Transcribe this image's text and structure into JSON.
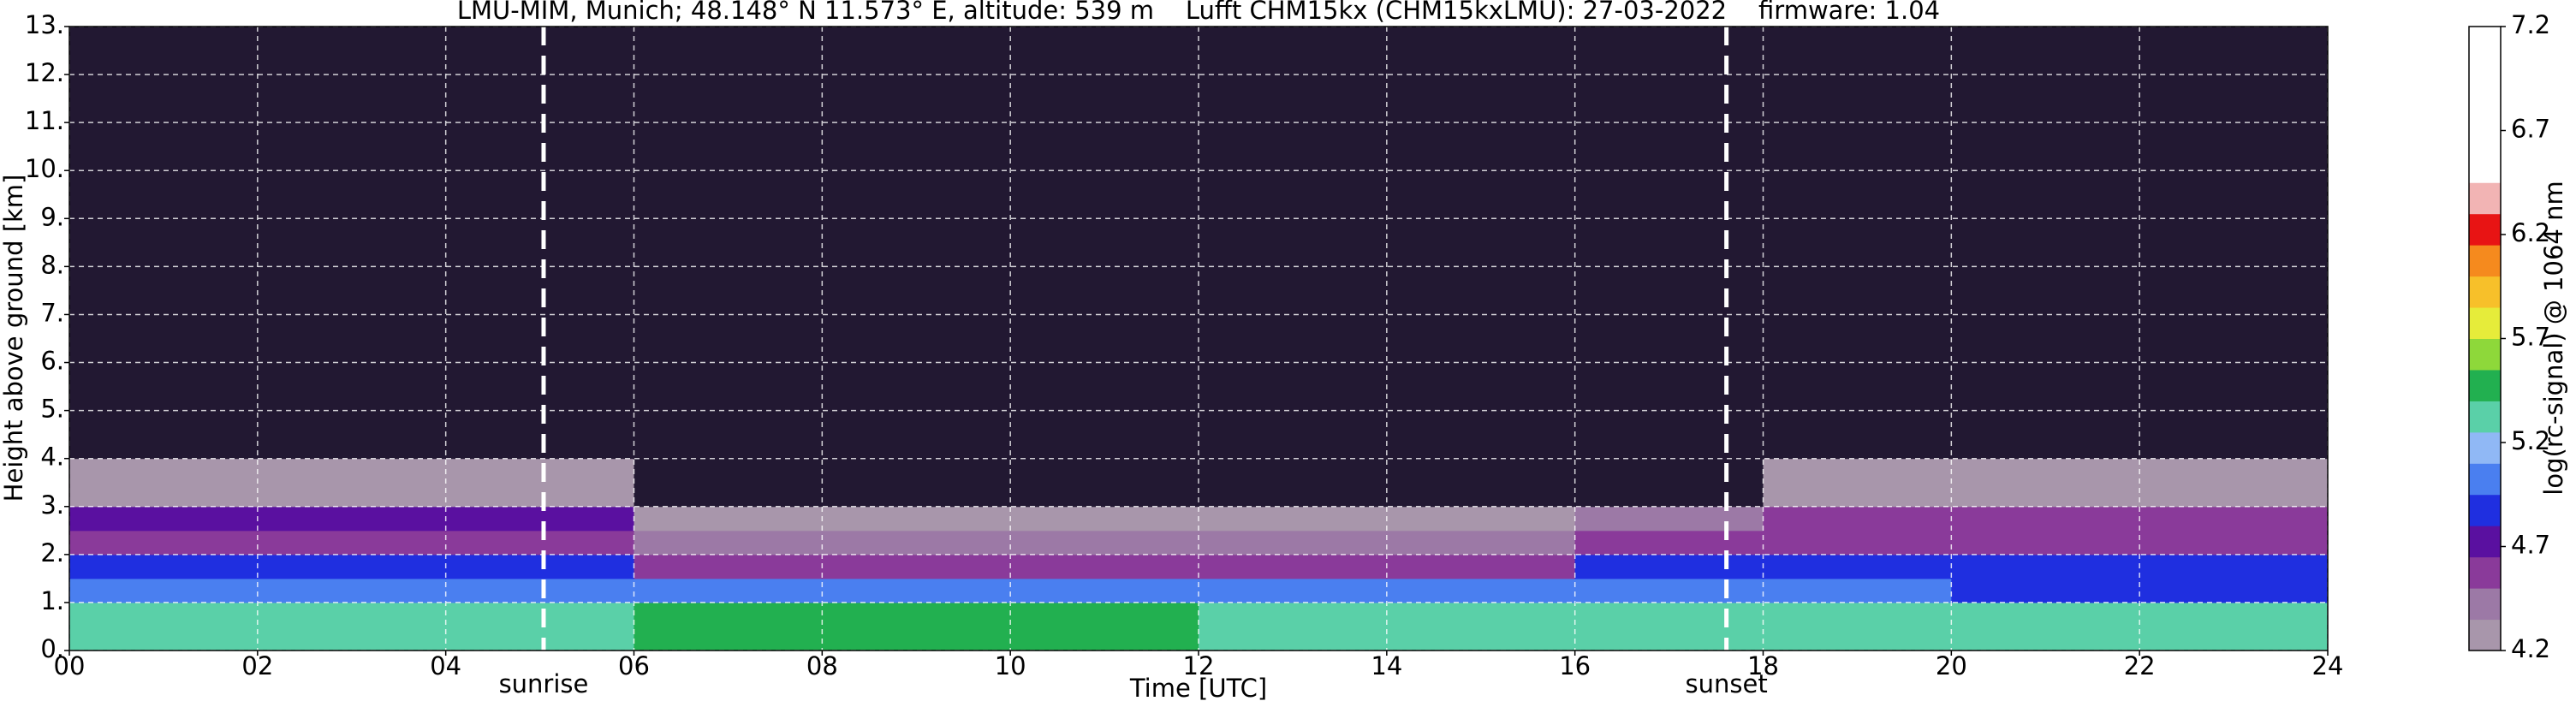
{
  "chart_data": {
    "type": "heatmap",
    "title": "LMU-MIM, Munich; 48.148° N 11.573° E, altitude: 539 m    Lufft CHM15kx (CHM15kxLMU): 27-03-2022    firmware: 1.04",
    "x_label": "Time [UTC]",
    "y_label": "Height above ground [km]",
    "xlim": [
      0,
      24
    ],
    "ylim": [
      0,
      13
    ],
    "xticks": [
      {
        "value": 0,
        "label": "00"
      },
      {
        "value": 2,
        "label": "02"
      },
      {
        "value": 4,
        "label": "04"
      },
      {
        "value": 6,
        "label": "06"
      },
      {
        "value": 8,
        "label": "08"
      },
      {
        "value": 10,
        "label": "10"
      },
      {
        "value": 12,
        "label": "12"
      },
      {
        "value": 14,
        "label": "14"
      },
      {
        "value": 16,
        "label": "16"
      },
      {
        "value": 18,
        "label": "18"
      },
      {
        "value": 20,
        "label": "20"
      },
      {
        "value": 22,
        "label": "22"
      },
      {
        "value": 24,
        "label": "24"
      }
    ],
    "yticks": [
      {
        "value": 0,
        "label": "0."
      },
      {
        "value": 1,
        "label": "1."
      },
      {
        "value": 2,
        "label": "2."
      },
      {
        "value": 3,
        "label": "3."
      },
      {
        "value": 4,
        "label": "4."
      },
      {
        "value": 5,
        "label": "5."
      },
      {
        "value": 6,
        "label": "6."
      },
      {
        "value": 7,
        "label": "7."
      },
      {
        "value": 8,
        "label": "8."
      },
      {
        "value": 9,
        "label": "9."
      },
      {
        "value": 10,
        "label": "10."
      },
      {
        "value": 11,
        "label": "11."
      },
      {
        "value": 12,
        "label": "12."
      },
      {
        "value": 13,
        "label": "13."
      }
    ],
    "grid": true,
    "x_bins": [
      0,
      2,
      4,
      6,
      8,
      10,
      12,
      14,
      16,
      18,
      20,
      22,
      24
    ],
    "y_bins": [
      0,
      0.25,
      0.5,
      1,
      1.5,
      2,
      2.5,
      3,
      4,
      6,
      9,
      13
    ],
    "z": [
      [
        5.3,
        5.3,
        5.3,
        5.4,
        5.4,
        5.45,
        5.35,
        5.3,
        5.3,
        5.3,
        5.3,
        5.3
      ],
      [
        5.35,
        5.35,
        5.35,
        5.45,
        5.45,
        5.5,
        5.35,
        5.3,
        5.3,
        5.3,
        5.3,
        5.3
      ],
      [
        5.3,
        5.3,
        5.3,
        5.4,
        5.4,
        5.45,
        5.35,
        5.3,
        5.3,
        5.3,
        5.3,
        5.3
      ],
      [
        5.0,
        5.0,
        5.0,
        4.95,
        4.95,
        5.05,
        5.05,
        5.05,
        4.95,
        5.0,
        4.9,
        4.9
      ],
      [
        4.85,
        4.85,
        4.8,
        4.6,
        4.5,
        4.5,
        4.55,
        4.6,
        4.8,
        4.85,
        4.9,
        4.9
      ],
      [
        4.6,
        4.6,
        4.55,
        4.4,
        4.4,
        4.4,
        4.4,
        4.45,
        4.55,
        4.6,
        4.6,
        4.6
      ],
      [
        4.75,
        4.7,
        4.7,
        4.3,
        4.3,
        4.3,
        4.3,
        4.3,
        4.45,
        4.5,
        4.5,
        4.5
      ],
      [
        4.3,
        4.3,
        4.25,
        4.15,
        4.15,
        4.15,
        4.15,
        4.15,
        4.15,
        4.3,
        4.3,
        4.3
      ],
      [
        4.1,
        4.1,
        4.1,
        4.15,
        4.15,
        4.15,
        4.15,
        4.15,
        4.1,
        4.1,
        4.1,
        4.1
      ],
      [
        4.0,
        4.0,
        4.0,
        4.1,
        4.15,
        4.15,
        4.15,
        4.1,
        4.1,
        4.0,
        4.0,
        4.0
      ],
      [
        4.0,
        4.0,
        4.0,
        4.1,
        4.15,
        4.15,
        4.15,
        4.1,
        4.1,
        4.0,
        4.0,
        4.0
      ]
    ],
    "vlines": [
      {
        "x": 5.04,
        "label": "sunrise"
      },
      {
        "x": 17.61,
        "label": "sunset"
      }
    ],
    "colorbar": {
      "label": "log(rc-signal) @ 1064 nm",
      "lim": [
        4.2,
        7.2
      ],
      "ticks": [
        4.2,
        4.7,
        5.2,
        5.7,
        6.2,
        6.7,
        7.2
      ],
      "levels": [
        4.2,
        4.35,
        4.5,
        4.65,
        4.8,
        4.95,
        5.1,
        5.25,
        5.4,
        5.55,
        5.7,
        5.85,
        6.0,
        6.15,
        6.3,
        6.45,
        7.2
      ],
      "colors": [
        "#a896ab",
        "#9c79a6",
        "#8a3a9a",
        "#5a10a0",
        "#1f2fe0",
        "#4a7ff0",
        "#90b8f5",
        "#5ad0a8",
        "#22b050",
        "#8ed83a",
        "#e6ec3a",
        "#f7c02a",
        "#f58a1e",
        "#e81414",
        "#f2b4b4",
        "#ffffff"
      ],
      "under_color": "#221832"
    }
  }
}
